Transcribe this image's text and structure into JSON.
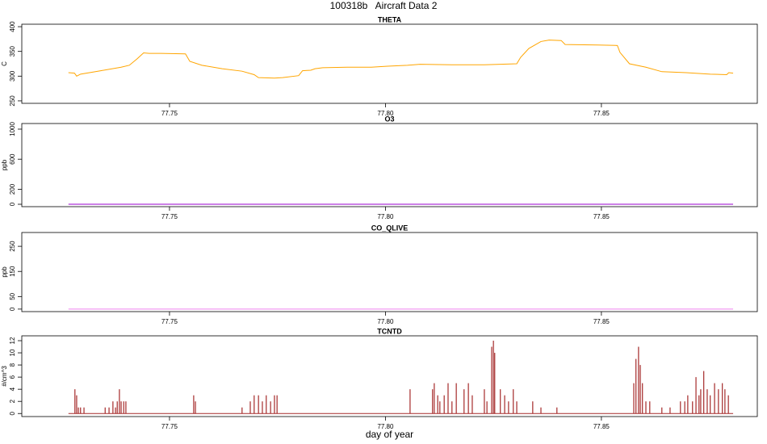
{
  "title": "100318b   Aircraft Data 2",
  "chart_data": [
    {
      "type": "line",
      "title": "THETA",
      "ylabel": "C",
      "color": "#ffa500",
      "xlim": [
        77.7158,
        77.8861
      ],
      "ylim": [
        245,
        405
      ],
      "xticks": [
        {
          "value": 77.75,
          "label": "77.75"
        },
        {
          "value": 77.8,
          "label": "77.80"
        },
        {
          "value": 77.85,
          "label": "77.85"
        }
      ],
      "yticks": [
        250,
        300,
        350,
        400
      ],
      "x": [
        77.7266,
        77.728,
        77.7285,
        77.7294,
        77.7341,
        77.7388,
        77.7407,
        77.7425,
        77.744,
        77.7453,
        77.7481,
        77.7537,
        77.7547,
        77.7575,
        77.7622,
        77.7668,
        77.7696,
        77.7706,
        77.7743,
        77.7762,
        77.7799,
        77.7808,
        77.7827,
        77.7837,
        77.7855,
        77.7911,
        77.7967,
        77.8005,
        77.8051,
        77.808,
        77.8154,
        77.8229,
        77.8266,
        77.8304,
        77.8313,
        77.8332,
        77.836,
        77.8379,
        77.8407,
        77.8416,
        77.8491,
        77.8537,
        77.8543,
        77.8565,
        77.8603,
        77.864,
        77.8696,
        77.8752,
        77.879,
        77.8795,
        77.8805
      ],
      "values": [
        307,
        306,
        300,
        304,
        311,
        318,
        322,
        335,
        347,
        346,
        346,
        345,
        330,
        322,
        315,
        310,
        303,
        297,
        296,
        297,
        301,
        311,
        312,
        315,
        317,
        318,
        318,
        320,
        322,
        324,
        323,
        323,
        324,
        325,
        338,
        356,
        370,
        373,
        372,
        364,
        363,
        362,
        348,
        325,
        318,
        309,
        307,
        304,
        303,
        307,
        306
      ]
    },
    {
      "type": "line",
      "title": "O3",
      "ylabel": "ppb",
      "color": "#9900cc",
      "xlim": [
        77.7158,
        77.8861
      ],
      "ylim": [
        -32,
        1075
      ],
      "xticks": [
        {
          "value": 77.75,
          "label": "77.75"
        },
        {
          "value": 77.8,
          "label": "77.80"
        },
        {
          "value": 77.85,
          "label": "77.85"
        }
      ],
      "yticks": [
        0,
        200,
        600,
        1000
      ],
      "x": [
        77.7266,
        77.8805
      ],
      "values": [
        0,
        0
      ]
    },
    {
      "type": "line",
      "title": "CO_QLIVE",
      "ylabel": "ppb",
      "color": "#ee82ee",
      "xlim": [
        77.7158,
        77.8861
      ],
      "ylim": [
        -10,
        305
      ],
      "xticks": [
        {
          "value": 77.75,
          "label": "77.75"
        },
        {
          "value": 77.8,
          "label": "77.80"
        },
        {
          "value": 77.85,
          "label": "77.85"
        }
      ],
      "yticks": [
        0,
        50,
        150,
        250
      ],
      "x": [
        77.7266,
        77.8805
      ],
      "values": [
        0,
        0
      ]
    },
    {
      "type": "spike",
      "title": "TCNTD",
      "ylabel": "#/cm^3",
      "xlabel": "day of year",
      "color": "#a52a2a",
      "xlim": [
        77.7158,
        77.8861
      ],
      "ylim": [
        -0.5,
        12.8
      ],
      "xticks": [
        {
          "value": 77.75,
          "label": "77.75"
        },
        {
          "value": 77.8,
          "label": "77.80"
        },
        {
          "value": 77.85,
          "label": "77.85"
        }
      ],
      "yticks": [
        0,
        2,
        4,
        6,
        8,
        10,
        12
      ],
      "x": [
        77.7266,
        77.7281,
        77.7285,
        77.7289,
        77.7294,
        77.7302,
        77.7351,
        77.736,
        77.7369,
        77.7375,
        77.7379,
        77.7384,
        77.7388,
        77.7394,
        77.7399,
        77.7556,
        77.756,
        77.7668,
        77.7687,
        77.7696,
        77.7706,
        77.7715,
        77.7724,
        77.7734,
        77.7743,
        77.7749,
        77.8057,
        77.8109,
        77.8113,
        77.8121,
        77.8126,
        77.8136,
        77.8145,
        77.8154,
        77.8164,
        77.8182,
        77.8192,
        77.8201,
        77.8229,
        77.8235,
        77.8246,
        77.825,
        77.8253,
        77.8266,
        77.8276,
        77.8285,
        77.8296,
        77.8304,
        77.8341,
        77.836,
        77.8397,
        77.8575,
        77.858,
        77.8586,
        77.859,
        77.8595,
        77.8603,
        77.8612,
        77.864,
        77.8659,
        77.8683,
        77.8693,
        77.87,
        77.8711,
        77.8719,
        77.8726,
        77.873,
        77.8737,
        77.8745,
        77.8752,
        77.8762,
        77.8771,
        77.878,
        77.8786,
        77.8794,
        77.8805
      ],
      "values": [
        0,
        4,
        3,
        1,
        1,
        1,
        1,
        1,
        2,
        1,
        2,
        4,
        2,
        2,
        2,
        3,
        2,
        1,
        2,
        3,
        3,
        2,
        3,
        2,
        3,
        3,
        4,
        4,
        5,
        3,
        2,
        3,
        5,
        2,
        5,
        4,
        5,
        3,
        4,
        2,
        11,
        12,
        10,
        4,
        3,
        2,
        4,
        2,
        2,
        1,
        1,
        5,
        9,
        11,
        8,
        5,
        2,
        2,
        1,
        1,
        2,
        2,
        3,
        2,
        6,
        3,
        4,
        7,
        4,
        3,
        5,
        4,
        5,
        4,
        3,
        0
      ]
    }
  ]
}
